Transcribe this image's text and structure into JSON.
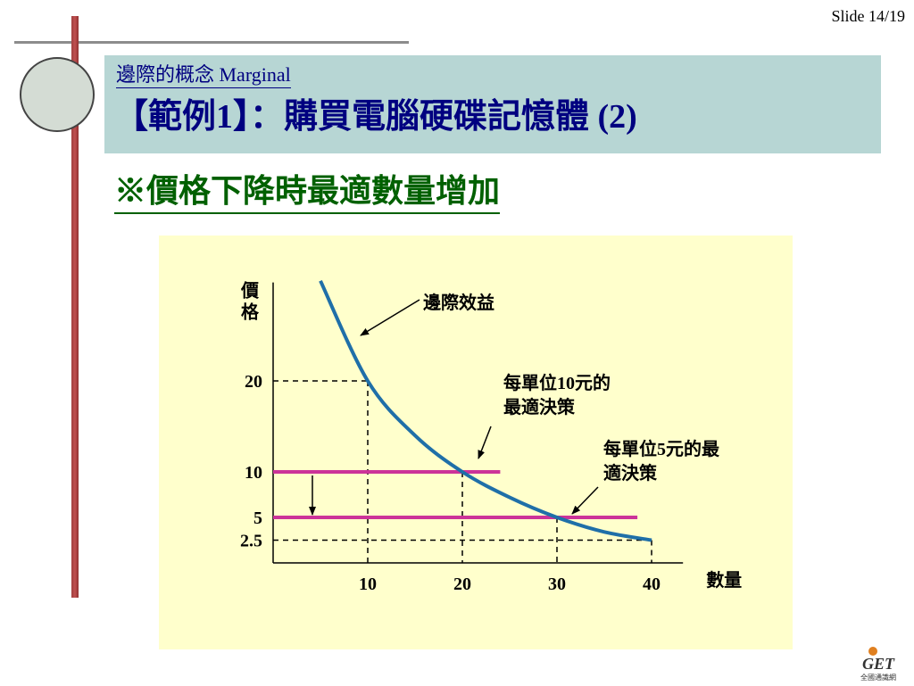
{
  "slide": {
    "number_label": "Slide 14/19"
  },
  "header": {
    "subtitle": "邊際的概念 Marginal",
    "title": "【範例1】：購買電腦硬碟記憶體 (2)"
  },
  "section_title": "※價格下降時最適數量增加",
  "colors": {
    "header_bg": "#b7d6d4",
    "header_text": "#000080",
    "section_text": "#006000",
    "chart_bg": "#ffffcc",
    "curve": "#1f6fa8",
    "price_line": "#cc3399",
    "left_bar": "#b04545"
  },
  "chart_data": {
    "type": "line",
    "title": "",
    "xlabel": "數量",
    "ylabel": "價格",
    "xlim": [
      0,
      42
    ],
    "ylim": [
      0,
      32
    ],
    "x_ticks": [
      10,
      20,
      30,
      40
    ],
    "y_ticks": [
      {
        "value": 20,
        "label": "20"
      },
      {
        "value": 10,
        "label": "10"
      },
      {
        "value": 5,
        "label": "5"
      },
      {
        "value": 2.5,
        "label": "2.5"
      }
    ],
    "series": [
      {
        "name": "邊際效益",
        "points": [
          [
            5,
            31
          ],
          [
            10,
            20
          ],
          [
            15,
            14
          ],
          [
            20,
            10
          ],
          [
            25,
            7.2
          ],
          [
            30,
            5
          ],
          [
            35,
            3.4
          ],
          [
            40,
            2.5
          ]
        ]
      }
    ],
    "price_lines": [
      {
        "price": 10,
        "x_end": 24
      },
      {
        "price": 5,
        "x_end": 38.5
      }
    ],
    "annotations": [
      {
        "id": "mb",
        "text": [
          "邊際效益"
        ]
      },
      {
        "id": "p10",
        "text": [
          "每單位10元的",
          "最適決策"
        ]
      },
      {
        "id": "p5",
        "text": [
          "每單位5元的最",
          "適決策"
        ]
      }
    ]
  },
  "logo": {
    "text": "GET",
    "caption": "全國通識網"
  }
}
